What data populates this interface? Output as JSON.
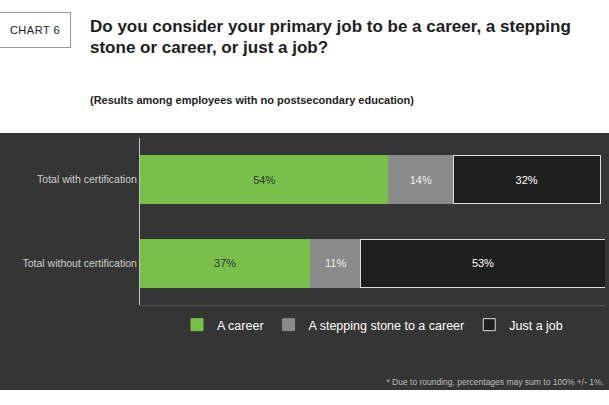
{
  "chart_data": {
    "type": "bar",
    "title": "Do you consider your primary job to be a career, a stepping stone or career, or just a job?",
    "subtitle": "(Results among employees with no postsecondary education)",
    "annotations": [
      "CHART 6",
      "* Due to rounding, percentages may sum to 100% +/- 1%."
    ],
    "orientation": "horizontal",
    "stacked": true,
    "data_labels": true,
    "tick_labels": "y",
    "grid": false,
    "legend": "bottom",
    "categories": [
      "Total with certification",
      "Total without certification"
    ],
    "series": [
      {
        "name": "A career",
        "color": "#78c04a",
        "values": [
          54,
          37
        ],
        "value_labels": [
          "54%",
          "37%"
        ]
      },
      {
        "name": "A stepping stone to a career",
        "color": "#8a8a8a",
        "values": [
          14,
          11
        ],
        "value_labels": [
          "14%",
          "11%"
        ]
      },
      {
        "name": "Just a job",
        "color": "#1e1e1e",
        "values": [
          32,
          53
        ],
        "value_labels": [
          "32%",
          "53%"
        ]
      }
    ],
    "xlim": [
      0,
      101
    ],
    "xticks": []
  }
}
